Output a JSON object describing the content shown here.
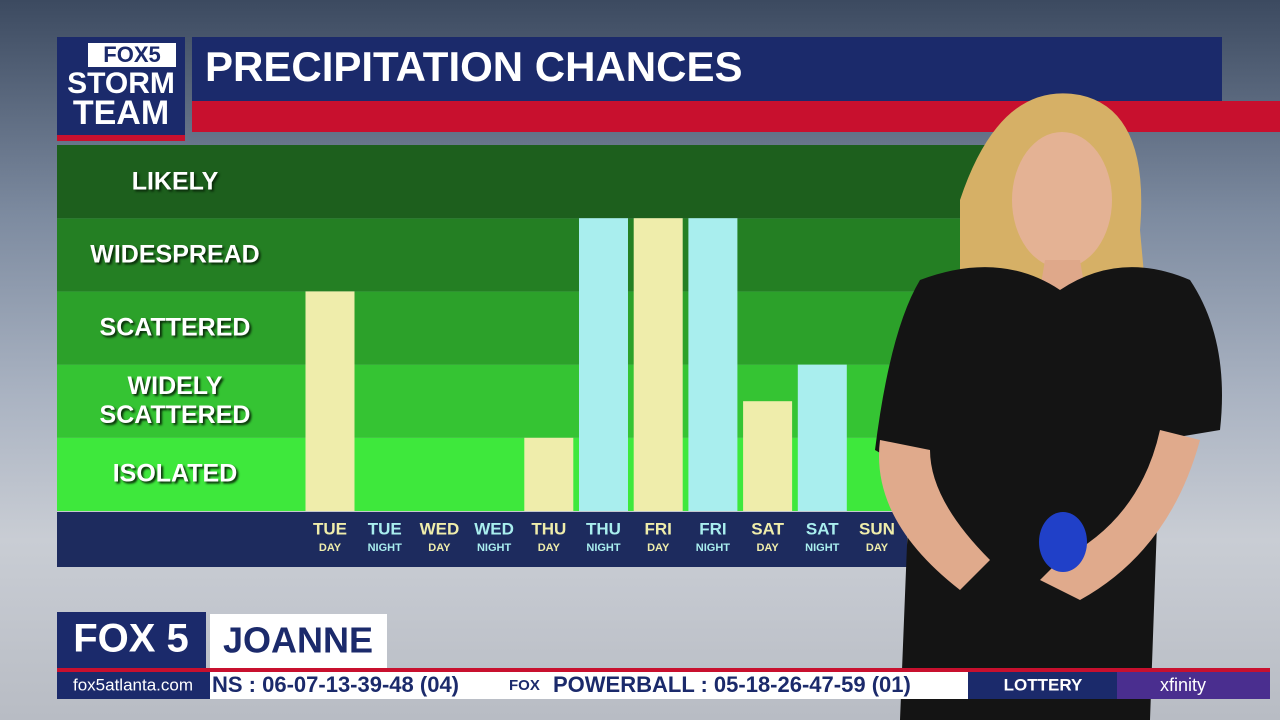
{
  "chart_data": {
    "type": "bar",
    "title": "PRECIPITATION CHANCES",
    "categories": [
      "TUE",
      "TUE",
      "WED",
      "WED",
      "THU",
      "THU",
      "FRI",
      "FRI",
      "SAT",
      "SAT",
      "SUN"
    ],
    "subcategories": [
      "DAY",
      "NIGHT",
      "DAY",
      "NIGHT",
      "DAY",
      "NIGHT",
      "DAY",
      "NIGHT",
      "DAY",
      "NIGHT",
      "DAY"
    ],
    "values": [
      3,
      0,
      0,
      0,
      1,
      4,
      4,
      4,
      1.5,
      2,
      0
    ],
    "bar_colors": [
      "#efedab",
      "#a9eeee",
      "#efedab",
      "#a9eeee",
      "#efedab",
      "#a9eeee",
      "#efedab",
      "#a9eeee",
      "#efedab",
      "#a9eeee",
      "#efedab"
    ],
    "ylim": [
      0,
      5
    ],
    "yticks": [
      {
        "value": 0.5,
        "label": "ISOLATED"
      },
      {
        "value": 1.5,
        "label": "WIDELY SCATTERED"
      },
      {
        "value": 2.5,
        "label": "SCATTERED"
      },
      {
        "value": 3.5,
        "label": "WIDESPREAD"
      },
      {
        "value": 4.5,
        "label": "LIKELY"
      }
    ],
    "band_colors": [
      "#3ee83c",
      "#35c433",
      "#2ca12a",
      "#247f23",
      "#1d5f1d"
    ]
  },
  "logo": {
    "top": "FOX5",
    "middle": "STORM",
    "bottom": "TEAM"
  },
  "lower_third": {
    "station": "FOX 5",
    "name": "JOANNE",
    "website": "fox5atlanta.com"
  },
  "ticker": {
    "item1": "NS : 06-07-13-39-48 (04)",
    "logo": "FOX",
    "item2": "POWERBALL : 05-18-26-47-59 (01)",
    "section": "LOTTERY",
    "sponsor": "xfinity"
  }
}
